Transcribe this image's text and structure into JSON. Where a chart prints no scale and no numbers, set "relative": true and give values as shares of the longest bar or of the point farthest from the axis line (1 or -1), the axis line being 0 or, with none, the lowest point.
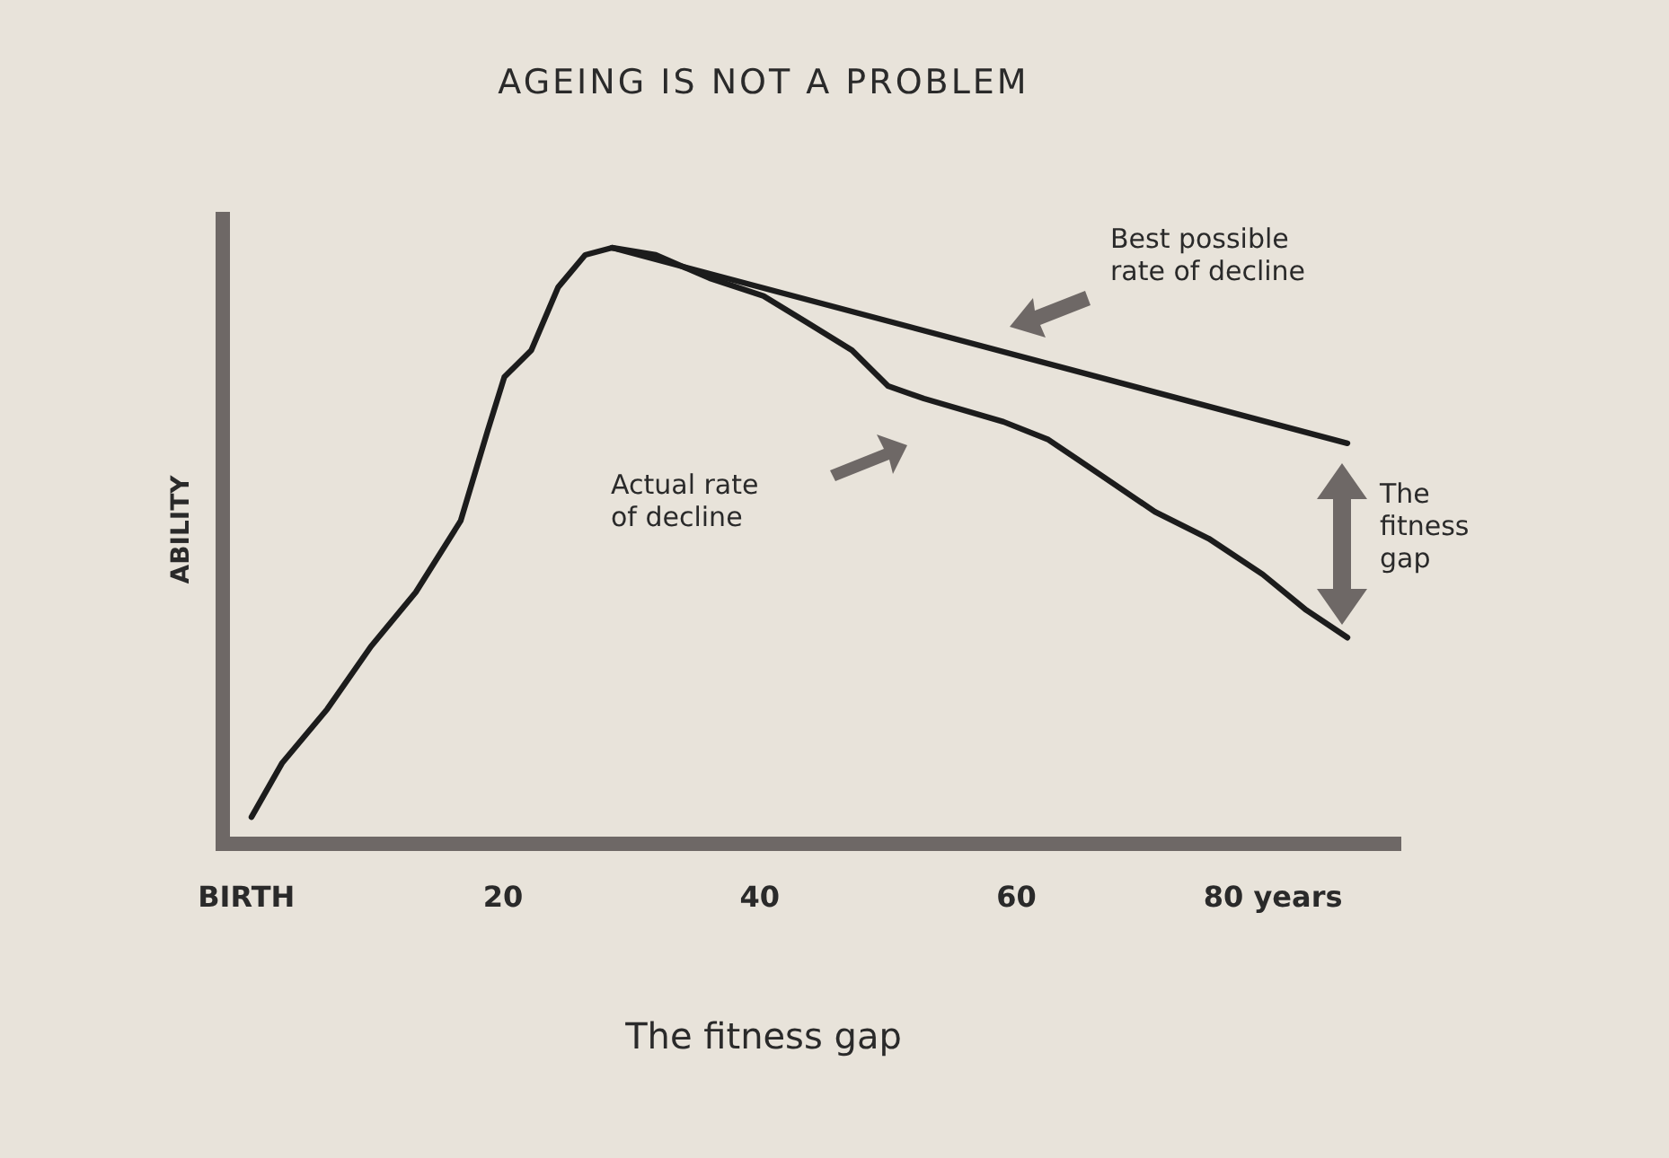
{
  "chart_data": {
    "type": "line",
    "title": "AGEING IS NOT A PROBLEM",
    "ylabel": "ABILITY",
    "relative": true,
    "xlim": [
      -1,
      90
    ],
    "xticks": [
      {
        "value": 0,
        "label": "BIRTH"
      },
      20,
      40,
      60,
      {
        "value": 80,
        "label": "80 years"
      }
    ],
    "series": [
      {
        "color": "#1c1c1c",
        "x": [
          0.4,
          2.8,
          6.3,
          9.7,
          13.2,
          16.7,
          18.8,
          20.1,
          22.2,
          24.3,
          26.4,
          28.5,
          31.9,
          36.1,
          40.3,
          43.8,
          47.2,
          50.0,
          52.8,
          59.0,
          62.5,
          66.7,
          70.8,
          75.0,
          79.2,
          82.6,
          85.8
        ],
        "values": [
          0.045,
          0.136,
          0.226,
          0.331,
          0.422,
          0.542,
          0.693,
          0.783,
          0.828,
          0.934,
          0.988,
          1.0,
          0.988,
          0.949,
          0.919,
          0.873,
          0.828,
          0.768,
          0.747,
          0.708,
          0.678,
          0.617,
          0.557,
          0.512,
          0.452,
          0.392,
          0.346
        ]
      },
      {
        "color": "#1c1c1c",
        "x": [
          28.5,
          85.8
        ],
        "values": [
          1.0,
          0.672
        ]
      }
    ],
    "annotations": [
      "Best possible\nrate of decline",
      "Actual rate\nof decline",
      "The\nfitness\ngap",
      "The fitness gap"
    ]
  }
}
